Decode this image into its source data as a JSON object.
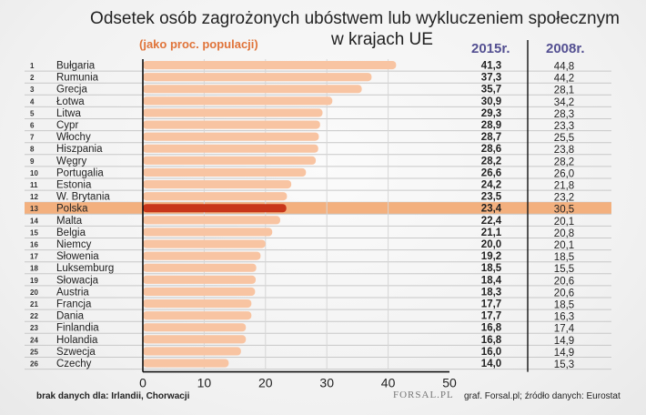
{
  "title_line1": "Odsetek osób zagrożonych ubóstwem lub wykluczeniem społecznym",
  "title_line2": "w krajach UE",
  "subtitle": "(jako proc. populacji)",
  "col_2015": "2015r.",
  "col_2008": "2008r.",
  "footnote": "brak danych dla: Irlandii, Chorwacji",
  "source": "graf. Forsal.pl; źródło danych: Eurostat",
  "logo": "FORSAL.PL",
  "colors": {
    "bar": "#f8c4a2",
    "highlight_bar": "#c8361a",
    "highlight_row": "#f3b07e",
    "header": "#545092",
    "subtitle": "#e0743a"
  },
  "chart_data": {
    "type": "bar",
    "orientation": "horizontal",
    "highlight": "Polska",
    "xlim": [
      0,
      50
    ],
    "xticks": [
      0,
      10,
      20,
      30,
      40,
      50
    ],
    "grid": true,
    "categories": [
      "Bułgaria",
      "Rumunia",
      "Grecja",
      "Łotwa",
      "Litwa",
      "Cypr",
      "Włochy",
      "Hiszpania",
      "Węgry",
      "Portugalia",
      "Estonia",
      "W. Brytania",
      "Polska",
      "Malta",
      "Belgia",
      "Niemcy",
      "Słowenia",
      "Luksemburg",
      "Słowacja",
      "Austria",
      "Francja",
      "Dania",
      "Finlandia",
      "Holandia",
      "Szwecja",
      "Czechy"
    ],
    "values_2015": [
      "41,3",
      "37,3",
      "35,7",
      "30,9",
      "29,3",
      "28,9",
      "28,7",
      "28,6",
      "28,2",
      "26,6",
      "24,2",
      "23,5",
      "23,4",
      "22,4",
      "21,1",
      "20,0",
      "19,2",
      "18,5",
      "18,4",
      "18,3",
      "17,7",
      "17,7",
      "16,8",
      "16,8",
      "16,0",
      "14,0"
    ],
    "values_2008": [
      "44,8",
      "44,2",
      "28,1",
      "34,2",
      "28,3",
      "23,3",
      "25,5",
      "23,8",
      "28,2",
      "26,0",
      "21,8",
      "23,2",
      "30,5",
      "20,1",
      "20,8",
      "20,1",
      "18,5",
      "15,5",
      "20,6",
      "20,6",
      "18,5",
      "16,3",
      "17,4",
      "14,9",
      "14,9",
      "15,3"
    ]
  }
}
